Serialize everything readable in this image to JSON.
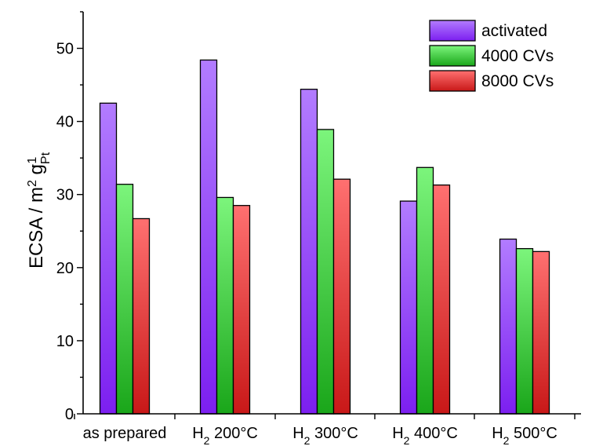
{
  "chart_data": {
    "type": "bar",
    "categories": [
      {
        "main": "as prepared",
        "sub": "",
        "suffix": ""
      },
      {
        "main": "H",
        "sub": "2",
        "suffix": " 200°C"
      },
      {
        "main": "H",
        "sub": "2",
        "suffix": " 300°C"
      },
      {
        "main": "H",
        "sub": "2",
        "suffix": " 400°C"
      },
      {
        "main": "H",
        "sub": "2",
        "suffix": " 500°C"
      }
    ],
    "series": [
      {
        "name": "activated",
        "values": [
          42.5,
          48.4,
          44.4,
          29.1,
          23.9
        ],
        "color_top": "#b27cff",
        "color_bottom": "#7c1ff0"
      },
      {
        "name": "4000 CVs",
        "values": [
          31.4,
          29.6,
          38.9,
          33.7,
          22.6
        ],
        "color_top": "#7cf57c",
        "color_bottom": "#1aa61a"
      },
      {
        "name": "8000 CVs",
        "values": [
          26.7,
          28.5,
          32.1,
          31.3,
          22.2
        ],
        "color_top": "#ff7070",
        "color_bottom": "#c81818"
      }
    ],
    "ylabel": {
      "main": "ECSA / m",
      "sup1": "2",
      "mid": " g",
      "sub": "Pt",
      "sup2": "-1"
    },
    "ylim": [
      0,
      55
    ],
    "yticks": [
      0,
      10,
      20,
      30,
      40,
      50
    ],
    "yminor_step": 5,
    "legend_position": "top-right",
    "grid": false
  }
}
